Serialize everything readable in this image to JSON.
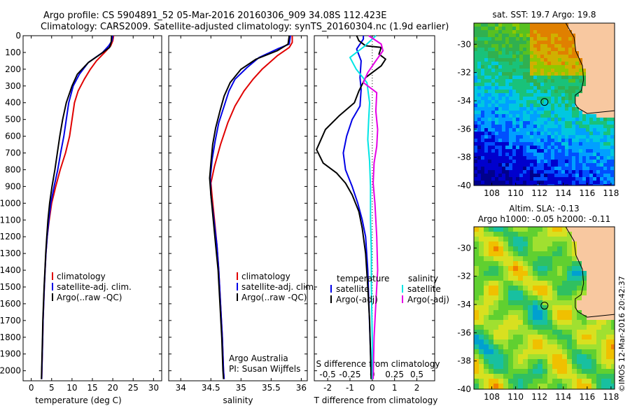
{
  "header": {
    "line1": "Argo profile: CS 5904891_52 05-Mar-2016 20160306_909 34.08S 112.423E",
    "line2": "Climatology: CARS2009. Satellite-adjusted climatology: synTS_20160304.nc (1.9d earlier)"
  },
  "side_text": "©IMOS 12-Mar-2016 20:42:37",
  "colors": {
    "climatology": "#e00000",
    "satellite": "#0000e6",
    "argo": "#000000",
    "satellite_sal": "#00e5e5",
    "argo_sal": "#e600e6"
  },
  "chart_data": [
    {
      "type": "line",
      "name": "temperature",
      "xlabel": "temperature (deg C)",
      "ylabel": "",
      "xlim": [
        -2,
        32
      ],
      "ylim": [
        2060,
        0
      ],
      "xticks": [
        0,
        5,
        10,
        15,
        20,
        25,
        30
      ],
      "yticks": [
        0,
        100,
        200,
        300,
        400,
        500,
        600,
        700,
        800,
        900,
        1000,
        1100,
        1200,
        1300,
        1400,
        1500,
        1600,
        1700,
        1800,
        1900,
        2000
      ],
      "legend": [
        "climatology",
        "satellite-adj. clim.",
        "Argo(..raw -QC)"
      ],
      "series": [
        {
          "name": "climatology",
          "color": "#e00000",
          "points": [
            [
              20.2,
              0
            ],
            [
              20,
              30
            ],
            [
              19.5,
              60
            ],
            [
              18,
              100
            ],
            [
              16,
              150
            ],
            [
              14.5,
              200
            ],
            [
              13,
              260
            ],
            [
              11.5,
              330
            ],
            [
              10.6,
              400
            ],
            [
              10,
              500
            ],
            [
              9.4,
              600
            ],
            [
              8.4,
              700
            ],
            [
              7.1,
              800
            ],
            [
              6,
              900
            ],
            [
              5,
              1000
            ],
            [
              4.4,
              1100
            ],
            [
              3.9,
              1200
            ],
            [
              3.6,
              1300
            ],
            [
              3.4,
              1400
            ],
            [
              3.2,
              1500
            ],
            [
              3.05,
              1600
            ],
            [
              2.9,
              1700
            ],
            [
              2.8,
              1800
            ],
            [
              2.7,
              1900
            ],
            [
              2.6,
              2000
            ],
            [
              2.55,
              2050
            ]
          ]
        },
        {
          "name": "satellite-adj. clim.",
          "color": "#0000e6",
          "points": [
            [
              20,
              0
            ],
            [
              19.8,
              30
            ],
            [
              19,
              60
            ],
            [
              17.5,
              100
            ],
            [
              14,
              160
            ],
            [
              11.8,
              230
            ],
            [
              10.3,
              300
            ],
            [
              9.2,
              400
            ],
            [
              8.6,
              500
            ],
            [
              8,
              600
            ],
            [
              7.2,
              700
            ],
            [
              6.5,
              800
            ],
            [
              5.6,
              900
            ],
            [
              4.8,
              1000
            ],
            [
              4.3,
              1100
            ],
            [
              3.9,
              1200
            ],
            [
              3.6,
              1300
            ],
            [
              3.4,
              1400
            ],
            [
              3.2,
              1500
            ],
            [
              3.05,
              1600
            ],
            [
              2.9,
              1700
            ],
            [
              2.8,
              1800
            ],
            [
              2.7,
              1900
            ],
            [
              2.6,
              2000
            ],
            [
              2.55,
              2050
            ]
          ]
        },
        {
          "name": "Argo(..raw -QC)",
          "color": "#000000",
          "points": [
            [
              19.7,
              0
            ],
            [
              19.6,
              40
            ],
            [
              19.2,
              70
            ],
            [
              17,
              110
            ],
            [
              14,
              160
            ],
            [
              11.3,
              230
            ],
            [
              10,
              300
            ],
            [
              8.6,
              400
            ],
            [
              7.7,
              500
            ],
            [
              7,
              600
            ],
            [
              6.4,
              700
            ],
            [
              5.8,
              800
            ],
            [
              5.1,
              900
            ],
            [
              4.5,
              1000
            ],
            [
              4.1,
              1100
            ],
            [
              3.8,
              1200
            ],
            [
              3.55,
              1300
            ],
            [
              3.35,
              1400
            ],
            [
              3.15,
              1500
            ],
            [
              3,
              1600
            ],
            [
              2.85,
              1700
            ],
            [
              2.75,
              1800
            ],
            [
              2.65,
              1900
            ],
            [
              2.55,
              2000
            ],
            [
              2.5,
              2050
            ]
          ]
        }
      ]
    },
    {
      "type": "line",
      "name": "salinity",
      "xlabel": "salinity",
      "ylabel": "",
      "xlim": [
        33.8,
        36.1
      ],
      "ylim": [
        2060,
        0
      ],
      "xticks": [
        34,
        34.5,
        35,
        35.5,
        36
      ],
      "legend": [
        "climatology",
        "satellite-adj. clim.",
        "Argo(..raw -QC)"
      ],
      "annotations": [
        "Argo Australia",
        "PI: Susan Wijffels"
      ],
      "series": [
        {
          "name": "climatology",
          "color": "#e00000",
          "points": [
            [
              35.85,
              0
            ],
            [
              35.85,
              40
            ],
            [
              35.8,
              70
            ],
            [
              35.6,
              120
            ],
            [
              35.35,
              200
            ],
            [
              35.2,
              260
            ],
            [
              35.05,
              330
            ],
            [
              34.9,
              420
            ],
            [
              34.78,
              520
            ],
            [
              34.66,
              650
            ],
            [
              34.56,
              780
            ],
            [
              34.5,
              880
            ],
            [
              34.52,
              960
            ],
            [
              34.56,
              1100
            ],
            [
              34.6,
              1250
            ],
            [
              34.63,
              1400
            ],
            [
              34.66,
              1600
            ],
            [
              34.69,
              1800
            ],
            [
              34.71,
              2000
            ],
            [
              34.72,
              2050
            ]
          ]
        },
        {
          "name": "satellite-adj. clim.",
          "color": "#0000e6",
          "points": [
            [
              35.82,
              0
            ],
            [
              35.8,
              50
            ],
            [
              35.6,
              80
            ],
            [
              35.3,
              130
            ],
            [
              35.1,
              190
            ],
            [
              34.9,
              260
            ],
            [
              34.8,
              330
            ],
            [
              34.72,
              420
            ],
            [
              34.63,
              520
            ],
            [
              34.57,
              630
            ],
            [
              34.52,
              740
            ],
            [
              34.49,
              850
            ],
            [
              34.5,
              950
            ],
            [
              34.55,
              1100
            ],
            [
              34.6,
              1250
            ],
            [
              34.63,
              1400
            ],
            [
              34.66,
              1600
            ],
            [
              34.69,
              1800
            ],
            [
              34.71,
              2000
            ],
            [
              34.72,
              2050
            ]
          ]
        },
        {
          "name": "Argo(..raw -QC)",
          "color": "#000000",
          "points": [
            [
              35.8,
              0
            ],
            [
              35.78,
              50
            ],
            [
              35.6,
              90
            ],
            [
              35.25,
              140
            ],
            [
              35.0,
              200
            ],
            [
              34.82,
              280
            ],
            [
              34.72,
              360
            ],
            [
              34.65,
              450
            ],
            [
              34.58,
              550
            ],
            [
              34.53,
              650
            ],
            [
              34.5,
              760
            ],
            [
              34.48,
              850
            ],
            [
              34.5,
              950
            ],
            [
              34.54,
              1100
            ],
            [
              34.58,
              1250
            ],
            [
              34.62,
              1400
            ],
            [
              34.65,
              1600
            ],
            [
              34.68,
              1800
            ],
            [
              34.7,
              2000
            ],
            [
              34.71,
              2050
            ]
          ]
        }
      ]
    },
    {
      "type": "line",
      "name": "difference",
      "xlabel": "T difference from climatology",
      "x2label": "S difference from climatology",
      "xlim": [
        -2.6,
        2.8
      ],
      "ylim": [
        2060,
        0
      ],
      "xticks": [
        -2,
        -1,
        0,
        1,
        2
      ],
      "x2ticks": [
        -0.5,
        -0.25,
        0,
        0.25,
        0.5
      ],
      "legend_titles": [
        "temperature",
        "salinity"
      ],
      "legend": [
        "satellite",
        "Argo(-adj)",
        "satellite",
        "Argo(-adj)"
      ],
      "series": [
        {
          "name": "satellite",
          "group": "temperature",
          "color": "#0000e6",
          "points": [
            [
              -0.4,
              0
            ],
            [
              -0.4,
              20
            ],
            [
              -0.5,
              40
            ],
            [
              -0.7,
              80
            ],
            [
              -0.5,
              150
            ],
            [
              -0.55,
              250
            ],
            [
              -0.5,
              320
            ],
            [
              -0.55,
              420
            ],
            [
              -0.9,
              500
            ],
            [
              -1.15,
              600
            ],
            [
              -1.3,
              700
            ],
            [
              -1.2,
              800
            ],
            [
              -0.9,
              900
            ],
            [
              -0.65,
              1000
            ],
            [
              -0.45,
              1100
            ],
            [
              -0.3,
              1200
            ],
            [
              -0.2,
              1400
            ],
            [
              -0.15,
              1600
            ],
            [
              -0.1,
              1800
            ],
            [
              -0.05,
              2000
            ],
            [
              -0.02,
              2050
            ]
          ]
        },
        {
          "name": "Argo(-adj)",
          "group": "temperature",
          "color": "#000000",
          "points": [
            [
              -0.7,
              0
            ],
            [
              -0.6,
              30
            ],
            [
              -0.3,
              60
            ],
            [
              0.4,
              70
            ],
            [
              0.3,
              110
            ],
            [
              0.6,
              140
            ],
            [
              0.4,
              180
            ],
            [
              -0.3,
              250
            ],
            [
              -0.6,
              330
            ],
            [
              -0.8,
              400
            ],
            [
              -1.5,
              480
            ],
            [
              -2.1,
              560
            ],
            [
              -2.5,
              680
            ],
            [
              -2.2,
              760
            ],
            [
              -1.6,
              820
            ],
            [
              -1.2,
              880
            ],
            [
              -0.9,
              950
            ],
            [
              -0.6,
              1050
            ],
            [
              -0.45,
              1150
            ],
            [
              -0.3,
              1300
            ],
            [
              -0.2,
              1500
            ],
            [
              -0.12,
              1700
            ],
            [
              -0.08,
              1900
            ],
            [
              -0.05,
              2050
            ]
          ]
        },
        {
          "name": "satellite",
          "group": "salinity",
          "color": "#00e5e5",
          "points": [
            [
              0.04,
              0
            ],
            [
              -0.08,
              60
            ],
            [
              -0.25,
              130
            ],
            [
              -0.18,
              200
            ],
            [
              -0.06,
              280
            ],
            [
              -0.03,
              400
            ],
            [
              -0.04,
              500
            ],
            [
              -0.05,
              620
            ],
            [
              -0.03,
              750
            ],
            [
              -0.02,
              900
            ],
            [
              -0.02,
              1100
            ],
            [
              -0.01,
              1300
            ],
            [
              -0.01,
              1500
            ],
            [
              0,
              1800
            ],
            [
              0,
              2050
            ]
          ]
        },
        {
          "name": "Argo(-adj)",
          "group": "salinity",
          "color": "#e600e6",
          "points": [
            [
              -0.04,
              0
            ],
            [
              0.1,
              50
            ],
            [
              0.12,
              90
            ],
            [
              0.04,
              150
            ],
            [
              -0.05,
              220
            ],
            [
              -0.1,
              280
            ],
            [
              0.05,
              340
            ],
            [
              0.04,
              450
            ],
            [
              0.06,
              560
            ],
            [
              0.05,
              660
            ],
            [
              0.02,
              760
            ],
            [
              0.01,
              880
            ],
            [
              0.03,
              1000
            ],
            [
              0.05,
              1200
            ],
            [
              0.06,
              1400
            ],
            [
              0.04,
              1600
            ],
            [
              0.02,
              1800
            ],
            [
              0.01,
              2050
            ]
          ]
        }
      ]
    },
    {
      "type": "heatmap",
      "name": "sst-map",
      "title": "sat. SST: 19.7 Argo: 19.8",
      "xlim": [
        106.5,
        118.3
      ],
      "ylim": [
        -40,
        -28.5
      ],
      "xticks": [
        108,
        110,
        112,
        114,
        116,
        118
      ],
      "yticks": [
        -30,
        -32,
        -34,
        -36,
        -38,
        -40
      ],
      "marker": {
        "lon": 112.42,
        "lat": -34.08
      }
    },
    {
      "type": "heatmap",
      "name": "sla-map",
      "title": "Altim. SLA: -0.13",
      "subtitle": "Argo h1000: -0.05 h2000: -0.11",
      "xlim": [
        106.5,
        118.3
      ],
      "ylim": [
        -40,
        -28.5
      ],
      "xticks": [
        108,
        110,
        112,
        114,
        116,
        118
      ],
      "yticks": [
        -30,
        -32,
        -34,
        -36,
        -38,
        -40
      ],
      "marker": {
        "lon": 112.42,
        "lat": -34.08
      }
    }
  ]
}
